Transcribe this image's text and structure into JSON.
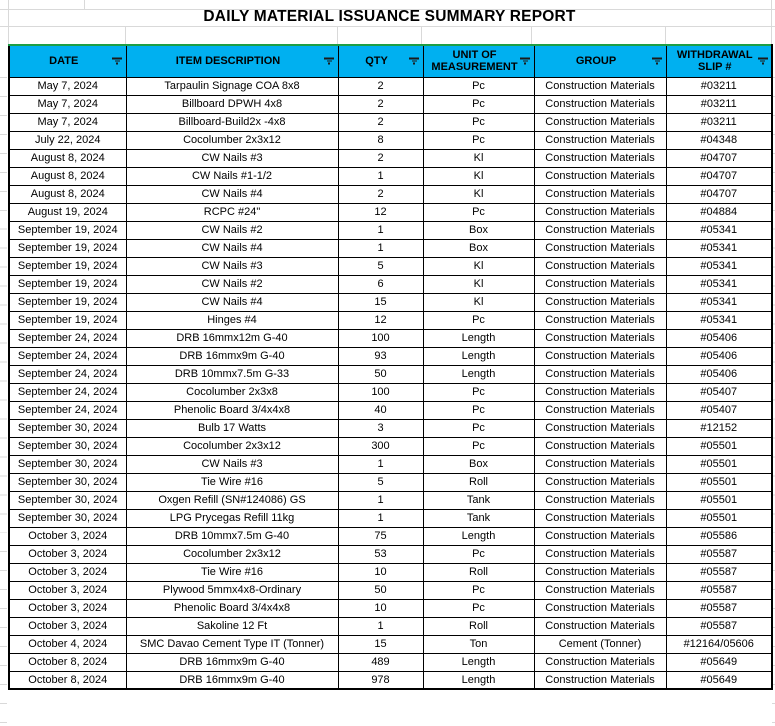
{
  "title": "DAILY MATERIAL ISSUANCE SUMMARY REPORT",
  "colors": {
    "header_bg": "#00B0F0",
    "header_text": "#000000",
    "border": "#000000",
    "gridline": "#D9D9D9",
    "table_top_accent": "#1D9E45"
  },
  "icons": {
    "header_filter": "filter-icon"
  },
  "table": {
    "columns": [
      "DATE",
      "ITEM DESCRIPTION",
      "QTY",
      "UNIT OF MEASUREMENT",
      "GROUP",
      "WITHDRAWAL SLIP #"
    ],
    "rows": [
      [
        "May 7, 2024",
        "Tarpaulin Signage COA 8x8",
        "2",
        "Pc",
        "Construction Materials",
        "#03211"
      ],
      [
        "May 7, 2024",
        "Billboard DPWH 4x8",
        "2",
        "Pc",
        "Construction Materials",
        "#03211"
      ],
      [
        "May 7, 2024",
        "Billboard-Build2x -4x8",
        "2",
        "Pc",
        "Construction Materials",
        "#03211"
      ],
      [
        "July 22, 2024",
        "Cocolumber 2x3x12",
        "8",
        "Pc",
        "Construction Materials",
        "#04348"
      ],
      [
        "August 8, 2024",
        "CW Nails #3",
        "2",
        "Kl",
        "Construction Materials",
        "#04707"
      ],
      [
        "August 8, 2024",
        "CW Nails #1-1/2",
        "1",
        "Kl",
        "Construction Materials",
        "#04707"
      ],
      [
        "August 8, 2024",
        "CW Nails #4",
        "2",
        "Kl",
        "Construction Materials",
        "#04707"
      ],
      [
        "August 19, 2024",
        "RCPC #24\"",
        "12",
        "Pc",
        "Construction Materials",
        "#04884"
      ],
      [
        "September 19, 2024",
        "CW Nails #2",
        "1",
        "Box",
        "Construction Materials",
        "#05341"
      ],
      [
        "September 19, 2024",
        "CW Nails #4",
        "1",
        "Box",
        "Construction Materials",
        "#05341"
      ],
      [
        "September 19, 2024",
        "CW Nails #3",
        "5",
        "Kl",
        "Construction Materials",
        "#05341"
      ],
      [
        "September 19, 2024",
        "CW Nails #2",
        "6",
        "Kl",
        "Construction Materials",
        "#05341"
      ],
      [
        "September 19, 2024",
        "CW Nails #4",
        "15",
        "Kl",
        "Construction Materials",
        "#05341"
      ],
      [
        "September 19, 2024",
        "Hinges #4",
        "12",
        "Pc",
        "Construction Materials",
        "#05341"
      ],
      [
        "September 24, 2024",
        "DRB 16mmx12m G-40",
        "100",
        "Length",
        "Construction Materials",
        "#05406"
      ],
      [
        "September 24, 2024",
        "DRB 16mmx9m G-40",
        "93",
        "Length",
        "Construction Materials",
        "#05406"
      ],
      [
        "September 24, 2024",
        "DRB 10mmx7.5m G-33",
        "50",
        "Length",
        "Construction Materials",
        "#05406"
      ],
      [
        "September 24, 2024",
        "Cocolumber 2x3x8",
        "100",
        "Pc",
        "Construction Materials",
        "#05407"
      ],
      [
        "September 24, 2024",
        "Phenolic Board 3/4x4x8",
        "40",
        "Pc",
        "Construction Materials",
        "#05407"
      ],
      [
        "September 30, 2024",
        "Bulb 17 Watts",
        "3",
        "Pc",
        "Construction Materials",
        "#12152"
      ],
      [
        "September 30, 2024",
        "Cocolumber 2x3x12",
        "300",
        "Pc",
        "Construction Materials",
        "#05501"
      ],
      [
        "September 30, 2024",
        "CW Nails #3",
        "1",
        "Box",
        "Construction Materials",
        "#05501"
      ],
      [
        "September 30, 2024",
        "Tie Wire #16",
        "5",
        "Roll",
        "Construction Materials",
        "#05501"
      ],
      [
        "September 30, 2024",
        "Oxgen Refill (SN#124086) GS",
        "1",
        "Tank",
        "Construction Materials",
        "#05501"
      ],
      [
        "September 30, 2024",
        "LPG Prycegas Refill 11kg",
        "1",
        "Tank",
        "Construction Materials",
        "#05501"
      ],
      [
        "October 3, 2024",
        "DRB 10mmx7.5m G-40",
        "75",
        "Length",
        "Construction Materials",
        "#05586"
      ],
      [
        "October 3, 2024",
        "Cocolumber 2x3x12",
        "53",
        "Pc",
        "Construction Materials",
        "#05587"
      ],
      [
        "October 3, 2024",
        "Tie Wire #16",
        "10",
        "Roll",
        "Construction Materials",
        "#05587"
      ],
      [
        "October 3, 2024",
        "Plywood 5mmx4x8-Ordinary",
        "50",
        "Pc",
        "Construction Materials",
        "#05587"
      ],
      [
        "October 3, 2024",
        "Phenolic Board 3/4x4x8",
        "10",
        "Pc",
        "Construction Materials",
        "#05587"
      ],
      [
        "October 3, 2024",
        "Sakoline 12 Ft",
        "1",
        "Roll",
        "Construction Materials",
        "#05587"
      ],
      [
        "October 4, 2024",
        "SMC Davao Cement Type IT (Tonner)",
        "15",
        "Ton",
        "Cement (Tonner)",
        "#12164/05606"
      ],
      [
        "October 8, 2024",
        "DRB 16mmx9m G-40",
        "489",
        "Length",
        "Construction Materials",
        "#05649"
      ],
      [
        "October 8, 2024",
        "DRB 16mmx9m G-40",
        "978",
        "Length",
        "Construction Materials",
        "#05649"
      ]
    ]
  }
}
